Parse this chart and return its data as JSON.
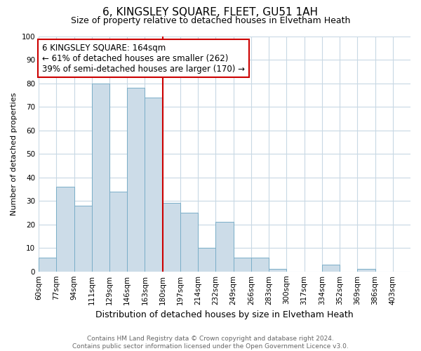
{
  "title": "6, KINGSLEY SQUARE, FLEET, GU51 1AH",
  "subtitle": "Size of property relative to detached houses in Elvetham Heath",
  "xlabel": "Distribution of detached houses by size in Elvetham Heath",
  "ylabel": "Number of detached properties",
  "bin_labels": [
    "60sqm",
    "77sqm",
    "94sqm",
    "111sqm",
    "129sqm",
    "146sqm",
    "163sqm",
    "180sqm",
    "197sqm",
    "214sqm",
    "232sqm",
    "249sqm",
    "266sqm",
    "283sqm",
    "300sqm",
    "317sqm",
    "334sqm",
    "352sqm",
    "369sqm",
    "386sqm",
    "403sqm"
  ],
  "bar_values": [
    6,
    36,
    28,
    80,
    34,
    78,
    74,
    29,
    25,
    10,
    21,
    6,
    6,
    1,
    0,
    0,
    3,
    0,
    1,
    0,
    0
  ],
  "bar_color": "#ccdce8",
  "bar_edge_color": "#7aaec8",
  "reference_line_x": 7,
  "reference_line_color": "#cc0000",
  "annotation_text": "6 KINGSLEY SQUARE: 164sqm\n← 61% of detached houses are smaller (262)\n39% of semi-detached houses are larger (170) →",
  "annotation_box_color": "#ffffff",
  "annotation_box_edge_color": "#cc0000",
  "footer_line1": "Contains HM Land Registry data © Crown copyright and database right 2024.",
  "footer_line2": "Contains public sector information licensed under the Open Government Licence v3.0.",
  "ylim": [
    0,
    100
  ],
  "background_color": "#ffffff",
  "grid_color": "#c8d8e4",
  "title_fontsize": 11,
  "subtitle_fontsize": 9,
  "xlabel_fontsize": 9,
  "ylabel_fontsize": 8,
  "tick_fontsize": 7.5,
  "footer_fontsize": 6.5
}
